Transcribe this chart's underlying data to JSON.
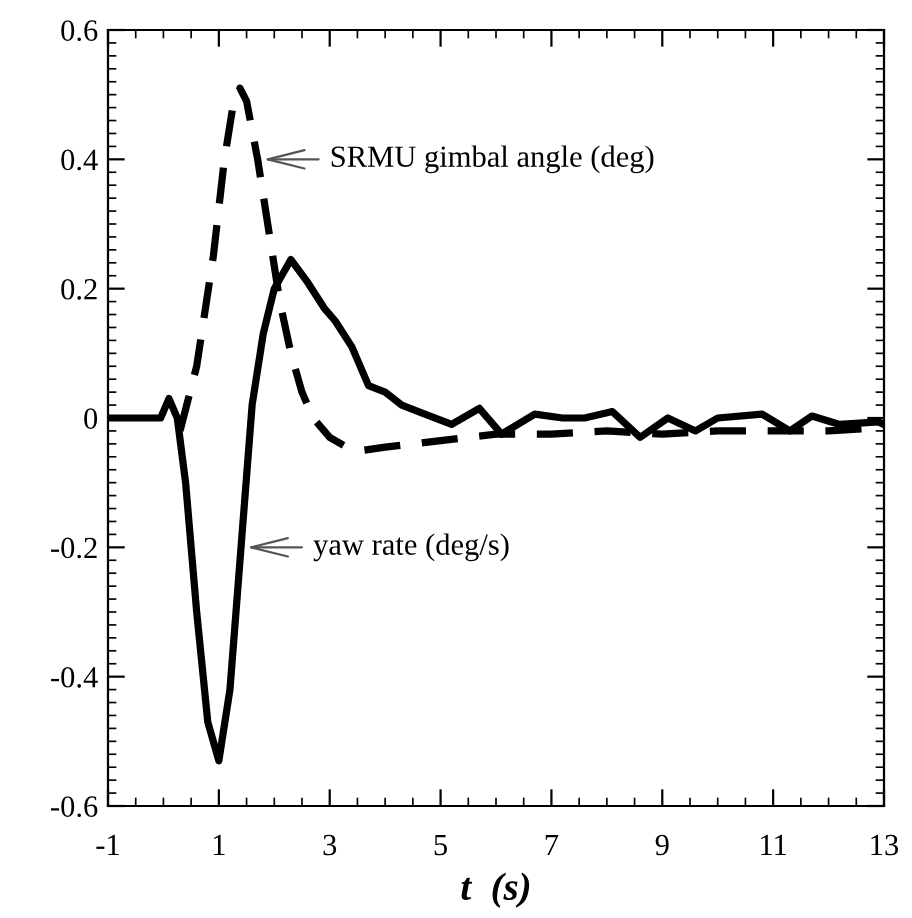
{
  "chart_data": {
    "type": "line",
    "xlabel": "t  (s)",
    "series": [
      {
        "name": "SRMU gimbal angle (deg)",
        "color": "#000000",
        "line_style": "dashed",
        "x": [
          0.3,
          0.6,
          0.9,
          1.1,
          1.25,
          1.38,
          1.5,
          1.7,
          1.9,
          2.1,
          2.3,
          2.5,
          2.7,
          3.0,
          3.3,
          3.6,
          4.0,
          4.5,
          5.0,
          5.5,
          6.0,
          7.0,
          8.0,
          9.0,
          10.0,
          11.0,
          12.0,
          13.0
        ],
        "values": [
          -0.02,
          0.08,
          0.25,
          0.4,
          0.48,
          0.51,
          0.49,
          0.4,
          0.29,
          0.18,
          0.1,
          0.04,
          0.0,
          -0.03,
          -0.045,
          -0.05,
          -0.045,
          -0.04,
          -0.035,
          -0.03,
          -0.025,
          -0.025,
          -0.02,
          -0.025,
          -0.02,
          -0.02,
          -0.02,
          -0.015
        ]
      },
      {
        "name": "yaw rate (deg/s)",
        "color": "#000000",
        "line_style": "solid",
        "x": [
          -1,
          -0.05,
          0.1,
          0.25,
          0.4,
          0.6,
          0.8,
          1.0,
          1.2,
          1.4,
          1.6,
          1.8,
          2.0,
          2.3,
          2.6,
          2.9,
          3.1,
          3.4,
          3.7,
          4.0,
          4.3,
          4.6,
          5.2,
          5.7,
          6.1,
          6.7,
          7.2,
          7.6,
          8.1,
          8.6,
          9.1,
          9.6,
          10.0,
          10.8,
          11.3,
          11.7,
          12.2,
          12.9,
          13.0
        ],
        "values": [
          0,
          0,
          0.03,
          0.0,
          -0.1,
          -0.3,
          -0.47,
          -0.53,
          -0.42,
          -0.2,
          0.02,
          0.13,
          0.2,
          0.245,
          0.21,
          0.17,
          0.15,
          0.11,
          0.05,
          0.04,
          0.02,
          0.01,
          -0.01,
          0.015,
          -0.025,
          0.006,
          0.0,
          0.0,
          0.01,
          -0.03,
          0.0,
          -0.02,
          0.0,
          0.006,
          -0.02,
          0.003,
          -0.01,
          -0.006,
          -0.01
        ]
      }
    ],
    "xlim": [
      -1,
      13
    ],
    "xticks": [
      -1,
      1,
      3,
      5,
      7,
      9,
      11,
      13
    ],
    "ylim": [
      -0.6,
      0.6
    ],
    "yticks": [
      -0.6,
      -0.4,
      -0.2,
      0,
      0.2,
      0.4,
      0.6
    ],
    "grid": false,
    "legend": false
  }
}
